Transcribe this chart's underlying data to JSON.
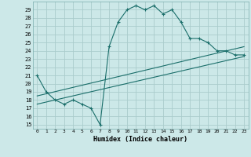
{
  "xlabel": "Humidex (Indice chaleur)",
  "bg_color": "#cce8e8",
  "grid_color": "#aacccc",
  "line_color": "#1a6e6a",
  "xlim": [
    -0.5,
    23.5
  ],
  "ylim": [
    14.5,
    30.0
  ],
  "xticks": [
    0,
    1,
    2,
    3,
    4,
    5,
    6,
    7,
    8,
    9,
    10,
    11,
    12,
    13,
    14,
    15,
    16,
    17,
    18,
    19,
    20,
    21,
    22,
    23
  ],
  "yticks": [
    15,
    16,
    17,
    18,
    19,
    20,
    21,
    22,
    23,
    24,
    25,
    26,
    27,
    28,
    29
  ],
  "line1_x": [
    0,
    1,
    2,
    3,
    4,
    5,
    6,
    7,
    8,
    9,
    10,
    11,
    12,
    13,
    14,
    15,
    16,
    17,
    18,
    19,
    20,
    21,
    22,
    23
  ],
  "line1_y": [
    21.0,
    19.0,
    18.0,
    17.5,
    18.0,
    17.5,
    17.0,
    15.0,
    24.5,
    27.5,
    29.0,
    29.5,
    29.0,
    29.5,
    28.5,
    29.0,
    27.5,
    25.5,
    25.5,
    25.0,
    24.0,
    24.0,
    23.5,
    23.5
  ],
  "line2_x": [
    0,
    23
  ],
  "line2_y": [
    18.5,
    24.5
  ],
  "line3_x": [
    0,
    23
  ],
  "line3_y": [
    17.5,
    23.3
  ]
}
